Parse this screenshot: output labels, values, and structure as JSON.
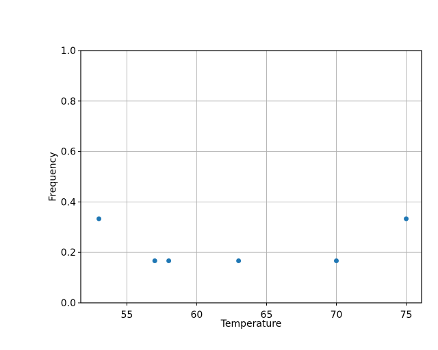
{
  "figure": {
    "background": "#ffffff"
  },
  "chart_data": {
    "type": "scatter",
    "title": "",
    "xlabel": "Temperature",
    "ylabel": "Frequency",
    "points": [
      {
        "x": 53,
        "y": 0.3333
      },
      {
        "x": 57,
        "y": 0.1667
      },
      {
        "x": 58,
        "y": 0.1667
      },
      {
        "x": 63,
        "y": 0.1667
      },
      {
        "x": 70,
        "y": 0.1667
      },
      {
        "x": 75,
        "y": 0.3333
      }
    ],
    "xlim": [
      51.7,
      76.1
    ],
    "ylim": [
      0.0,
      1.0
    ],
    "xticks": [
      55,
      60,
      65,
      70,
      75
    ],
    "xtick_labels": [
      "55",
      "60",
      "65",
      "70",
      "75"
    ],
    "yticks": [
      0.0,
      0.2,
      0.4,
      0.6,
      0.8,
      1.0
    ],
    "ytick_labels": [
      "0.0",
      "0.2",
      "0.4",
      "0.6",
      "0.8",
      "1.0"
    ],
    "grid": true,
    "legend_position": "none",
    "marker_color": "#1f77b4",
    "grid_color": "#b0b0b0",
    "spine_color": "#000000",
    "text_color": "#000000"
  }
}
